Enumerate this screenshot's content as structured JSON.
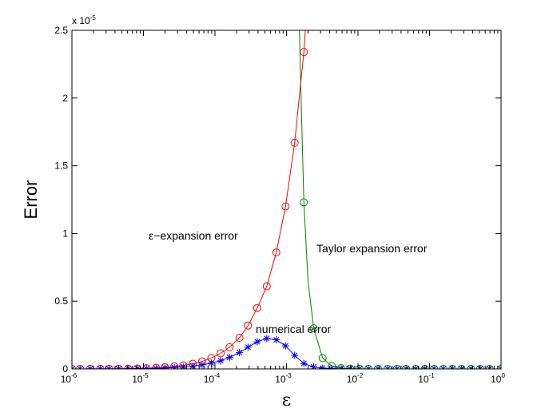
{
  "chart_data": {
    "type": "line",
    "xscale": "log",
    "xlim": [
      1e-06,
      1
    ],
    "ylim": [
      0,
      2.5e-05
    ],
    "xticks": [
      1e-06,
      1e-05,
      0.0001,
      0.001,
      0.01,
      0.1,
      1
    ],
    "xtick_labels": [
      {
        "base": "10",
        "exp": "-6"
      },
      {
        "base": "10",
        "exp": "-5"
      },
      {
        "base": "10",
        "exp": "-4"
      },
      {
        "base": "10",
        "exp": "-3"
      },
      {
        "base": "10",
        "exp": "-2"
      },
      {
        "base": "10",
        "exp": "-1"
      },
      {
        "base": "10",
        "exp": "0"
      }
    ],
    "yticks": [
      0,
      5e-06,
      1e-05,
      1.5e-05,
      2e-05,
      2.5e-05
    ],
    "ytick_labels": [
      "0",
      "0.5",
      "1",
      "1.5",
      "2",
      "2.5"
    ],
    "y_multiplier": {
      "base": "x 10",
      "exp": "-5"
    },
    "xlabel": "ε",
    "ylabel": "Error",
    "grid": false,
    "legend": "none",
    "annotations": [
      "ε−expansion error",
      "Taylor expansion error",
      "numerical error"
    ],
    "series": [
      {
        "color": "#ff0000",
        "marker": "circle",
        "x": [
          1e-06,
          1.3e-06,
          1.8e-06,
          2.5e-06,
          3.3e-06,
          4.5e-06,
          6.1e-06,
          8.2e-06,
          1.1e-05,
          1.5e-05,
          2e-05,
          2.7e-05,
          3.6e-05,
          4.9e-05,
          6.6e-05,
          8.9e-05,
          0.00012,
          0.00016,
          0.00022,
          0.00029,
          0.00039,
          0.00053,
          0.00072,
          0.00097,
          0.0013,
          0.00175,
          0.002
        ],
        "values": [
          2e-09,
          3e-09,
          4e-09,
          6e-09,
          9e-09,
          1.3e-08,
          2e-08,
          3e-08,
          5e-08,
          8e-08,
          1.2e-07,
          1.8e-07,
          2.6e-07,
          3.8e-07,
          5.5e-07,
          8e-07,
          1.15e-06,
          1.6e-06,
          2.3e-06,
          3.2e-06,
          4.5e-06,
          6.1e-06,
          8.6e-06,
          1.2e-05,
          1.67e-05,
          2.34e-05,
          2.8e-05
        ],
        "markers_x": [
          1e-06,
          1.3e-06,
          1.8e-06,
          2.5e-06,
          3.3e-06,
          4.5e-06,
          6.1e-06,
          8.2e-06,
          1.1e-05,
          1.5e-05,
          2e-05,
          2.7e-05,
          3.6e-05,
          4.9e-05,
          6.6e-05,
          8.9e-05,
          0.00012,
          0.00016,
          0.00022,
          0.00029,
          0.00039,
          0.00053,
          0.00072,
          0.00097,
          0.0013,
          0.00175
        ],
        "markers_y": [
          2e-09,
          3e-09,
          4e-09,
          6e-09,
          9e-09,
          1.3e-08,
          2e-08,
          3e-08,
          5e-08,
          8e-08,
          1.2e-07,
          1.8e-07,
          2.6e-07,
          3.8e-07,
          5.5e-07,
          8e-07,
          1.15e-06,
          1.6e-06,
          2.3e-06,
          3.2e-06,
          4.5e-06,
          6.1e-06,
          8.6e-06,
          1.2e-05,
          1.67e-05,
          2.34e-05
        ]
      },
      {
        "color": "#008000",
        "marker": "circle",
        "x": [
          0.0015,
          0.0016,
          0.00175,
          0.002,
          0.0024,
          0.0032,
          0.0043,
          0.0058,
          0.0078,
          0.0105,
          0.014,
          0.019,
          0.026,
          0.035,
          0.047,
          0.064,
          0.086,
          0.116,
          0.156,
          0.21,
          0.28,
          0.38,
          0.51,
          0.69,
          1
        ],
        "values": [
          2.6e-05,
          2e-05,
          1.23e-05,
          6.5e-06,
          3e-06,
          8e-07,
          2e-07,
          6e-08,
          2e-08,
          1e-08,
          5e-09,
          3e-09,
          2e-09,
          2e-09,
          2e-09,
          2e-09,
          2e-09,
          2e-09,
          2e-09,
          2e-09,
          2e-09,
          2e-09,
          2e-09,
          2e-09,
          2e-09
        ],
        "markers_x": [
          0.00175,
          0.0024,
          0.0032,
          0.0043,
          0.0058,
          0.0078,
          0.0105,
          0.014,
          0.019,
          0.026,
          0.035,
          0.047,
          0.064,
          0.086,
          0.116,
          0.156,
          0.21,
          0.28,
          0.38,
          0.51,
          0.69,
          1
        ],
        "markers_y": [
          1.23e-05,
          3e-06,
          8e-07,
          2e-07,
          6e-08,
          2e-08,
          1e-08,
          5e-09,
          3e-09,
          2e-09,
          2e-09,
          2e-09,
          2e-09,
          2e-09,
          2e-09,
          2e-09,
          2e-09,
          2e-09,
          2e-09,
          2e-09,
          2e-09,
          2e-09
        ]
      },
      {
        "color": "#0000ff",
        "marker": "star",
        "x": [
          1e-06,
          1.3e-06,
          1.8e-06,
          2.5e-06,
          3.3e-06,
          4.5e-06,
          6.1e-06,
          8.2e-06,
          1.1e-05,
          1.5e-05,
          2e-05,
          2.7e-05,
          3.6e-05,
          4.9e-05,
          6.6e-05,
          8.9e-05,
          0.00012,
          0.00016,
          0.00022,
          0.00029,
          0.00039,
          0.00053,
          0.00072,
          0.00097,
          0.0013,
          0.00175,
          0.0024,
          0.0032,
          0.0043,
          0.0058,
          0.0078,
          0.0105,
          0.014,
          0.019,
          0.026,
          0.035,
          0.047,
          0.064,
          0.086,
          0.116,
          0.156,
          0.21,
          0.28,
          0.38,
          0.51,
          0.69,
          1
        ],
        "values": [
          2e-09,
          3e-09,
          4e-09,
          5e-09,
          7e-09,
          1e-08,
          1.4e-08,
          2e-08,
          3e-08,
          4.5e-08,
          6.5e-08,
          1e-07,
          1.5e-07,
          2.1e-07,
          3e-07,
          4.3e-07,
          6e-07,
          8.5e-07,
          1.2e-06,
          1.6e-06,
          2e-06,
          2.25e-06,
          2.15e-06,
          1.7e-06,
          1e-06,
          4e-07,
          1.5e-07,
          6e-08,
          3e-08,
          1e-08,
          5e-09,
          3e-09,
          2e-09,
          2e-09,
          2e-09,
          2e-09,
          2e-09,
          2e-09,
          2e-09,
          2e-09,
          2e-09,
          2e-09,
          2e-09,
          2e-09,
          2e-09,
          2e-09,
          2e-09
        ]
      }
    ]
  }
}
